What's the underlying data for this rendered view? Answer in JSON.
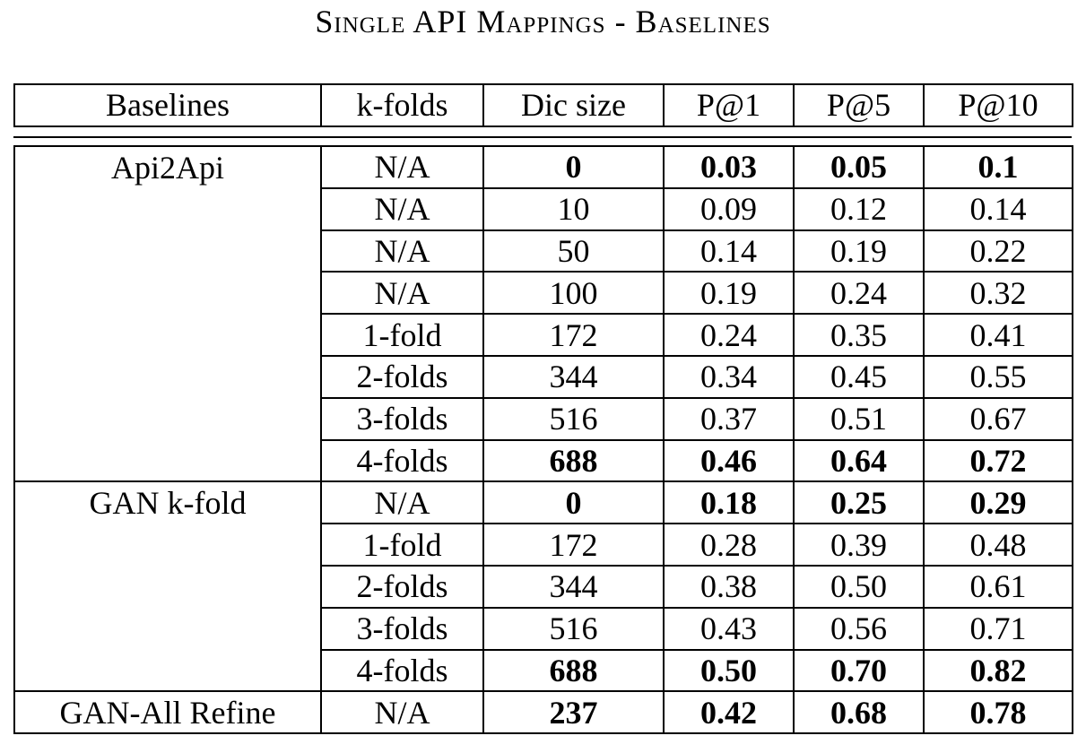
{
  "title": "Single API Mappings - Baselines",
  "headers": [
    "Baselines",
    "k-folds",
    "Dic size",
    "P@1",
    "P@5",
    "P@10"
  ],
  "groups": [
    {
      "name": "Api2Api",
      "rows": [
        {
          "kfolds": "N/A",
          "dic": "0",
          "p1": "0.03",
          "p5": "0.05",
          "p10": "0.1",
          "bold": true
        },
        {
          "kfolds": "N/A",
          "dic": "10",
          "p1": "0.09",
          "p5": "0.12",
          "p10": "0.14",
          "bold": false
        },
        {
          "kfolds": "N/A",
          "dic": "50",
          "p1": "0.14",
          "p5": "0.19",
          "p10": "0.22",
          "bold": false
        },
        {
          "kfolds": "N/A",
          "dic": "100",
          "p1": "0.19",
          "p5": "0.24",
          "p10": "0.32",
          "bold": false
        },
        {
          "kfolds": "1-fold",
          "dic": "172",
          "p1": "0.24",
          "p5": "0.35",
          "p10": "0.41",
          "bold": false
        },
        {
          "kfolds": "2-folds",
          "dic": "344",
          "p1": "0.34",
          "p5": "0.45",
          "p10": "0.55",
          "bold": false
        },
        {
          "kfolds": "3-folds",
          "dic": "516",
          "p1": "0.37",
          "p5": "0.51",
          "p10": "0.67",
          "bold": false
        },
        {
          "kfolds": "4-folds",
          "dic": "688",
          "p1": "0.46",
          "p5": "0.64",
          "p10": "0.72",
          "bold": true
        }
      ]
    },
    {
      "name": "GAN k-fold",
      "rows": [
        {
          "kfolds": "N/A",
          "dic": "0",
          "p1": "0.18",
          "p5": "0.25",
          "p10": "0.29",
          "bold": true
        },
        {
          "kfolds": "1-fold",
          "dic": "172",
          "p1": "0.28",
          "p5": "0.39",
          "p10": "0.48",
          "bold": false
        },
        {
          "kfolds": "2-folds",
          "dic": "344",
          "p1": "0.38",
          "p5": "0.50",
          "p10": "0.61",
          "bold": false
        },
        {
          "kfolds": "3-folds",
          "dic": "516",
          "p1": "0.43",
          "p5": "0.56",
          "p10": "0.71",
          "bold": false
        },
        {
          "kfolds": "4-folds",
          "dic": "688",
          "p1": "0.50",
          "p5": "0.70",
          "p10": "0.82",
          "bold": true
        }
      ]
    },
    {
      "name": "GAN-All Refine",
      "rows": [
        {
          "kfolds": "N/A",
          "dic": "237",
          "p1": "0.42",
          "p5": "0.68",
          "p10": "0.78",
          "bold": true
        }
      ]
    }
  ]
}
